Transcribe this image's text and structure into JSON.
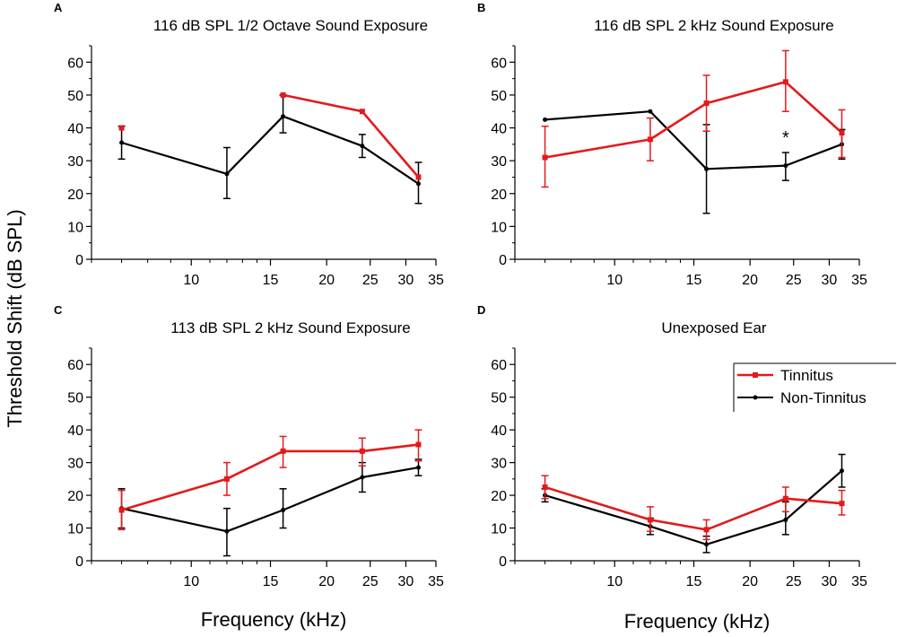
{
  "figure": {
    "ylabel": "Threshold Shift (dB SPL)",
    "xlabel": "Frequency (kHz)",
    "colors": {
      "tinnitus": "#e31a1c",
      "non_tinnitus": "#000000"
    },
    "legend": {
      "tinnitus": "Tinnitus",
      "non_tinnitus": "Non-Tinnitus"
    }
  },
  "chart_data": [
    {
      "panel": "A",
      "type": "line",
      "title": "116 dB SPL 1/2 Octave Sound Exposure",
      "xscale": "log",
      "xlim": [
        6,
        35
      ],
      "ylim": [
        0,
        65
      ],
      "xticks": [
        10,
        15,
        20,
        25,
        30,
        35
      ],
      "yticks": [
        0,
        10,
        20,
        30,
        40,
        50,
        60
      ],
      "series": [
        {
          "name": "Tinnitus",
          "color": "#e31a1c",
          "segments": [
            [
              [
                7,
                40
              ]
            ],
            [
              [
                16,
                50
              ],
              [
                24,
                45
              ],
              [
                32,
                25
              ]
            ]
          ],
          "errors": []
        },
        {
          "name": "Non-Tinnitus",
          "color": "#000000",
          "segments": [
            [
              [
                7,
                35.5
              ],
              [
                12,
                26
              ],
              [
                16,
                43.5
              ],
              [
                24,
                34.5
              ],
              [
                32,
                23
              ]
            ]
          ],
          "errors": [
            [
              7,
              30.5,
              40.5
            ],
            [
              12,
              18.5,
              34
            ],
            [
              16,
              38.5,
              50
            ],
            [
              24,
              31,
              38
            ],
            [
              32,
              17,
              29.5
            ]
          ]
        }
      ],
      "annotations": []
    },
    {
      "panel": "B",
      "type": "line",
      "title": "116 dB SPL 2 kHz Sound Exposure",
      "xscale": "log",
      "xlim": [
        6,
        35
      ],
      "ylim": [
        0,
        65
      ],
      "xticks": [
        10,
        15,
        20,
        25,
        30,
        35
      ],
      "yticks": [
        0,
        10,
        20,
        30,
        40,
        50,
        60
      ],
      "series": [
        {
          "name": "Tinnitus",
          "color": "#e31a1c",
          "segments": [
            [
              [
                7,
                31
              ],
              [
                12,
                36.5
              ],
              [
                16,
                47.5
              ],
              [
                24,
                54
              ],
              [
                32,
                38.5
              ]
            ]
          ],
          "errors": [
            [
              7,
              22,
              40.5
            ],
            [
              12,
              30,
              43
            ],
            [
              16,
              39,
              56
            ],
            [
              24,
              45,
              63.5
            ],
            [
              32,
              31,
              45.5
            ]
          ]
        },
        {
          "name": "Non-Tinnitus",
          "color": "#000000",
          "segments": [
            [
              [
                7,
                42.5
              ],
              [
                12,
                45
              ],
              [
                16,
                27.5
              ],
              [
                24,
                28.5
              ],
              [
                32,
                35
              ]
            ]
          ],
          "errors": [
            [
              16,
              14,
              41
            ],
            [
              24,
              24,
              32.5
            ],
            [
              32,
              30.5,
              39.5
            ]
          ]
        }
      ],
      "annotations": [
        {
          "text": "*",
          "x": 24,
          "y": 38.5
        }
      ]
    },
    {
      "panel": "C",
      "type": "line",
      "title": "113 dB SPL 2 kHz Sound Exposure",
      "xscale": "log",
      "xlim": [
        6,
        35
      ],
      "ylim": [
        0,
        65
      ],
      "xticks": [
        10,
        15,
        20,
        25,
        30,
        35
      ],
      "yticks": [
        0,
        10,
        20,
        30,
        40,
        50,
        60
      ],
      "series": [
        {
          "name": "Tinnitus",
          "color": "#e31a1c",
          "segments": [
            [
              [
                7,
                15.5
              ],
              [
                12,
                25
              ],
              [
                16,
                33.5
              ],
              [
                24,
                33.5
              ],
              [
                32,
                35.5
              ]
            ]
          ],
          "errors": [
            [
              7,
              9.5,
              21.5
            ],
            [
              12,
              20,
              30
            ],
            [
              16,
              28.5,
              38
            ],
            [
              24,
              29,
              37.5
            ],
            [
              32,
              30.5,
              40
            ]
          ]
        },
        {
          "name": "Non-Tinnitus",
          "color": "#000000",
          "segments": [
            [
              [
                7,
                16
              ],
              [
                12,
                9
              ],
              [
                16,
                15.5
              ],
              [
                24,
                25.5
              ],
              [
                32,
                28.5
              ]
            ]
          ],
          "errors": [
            [
              7,
              10,
              22
            ],
            [
              12,
              1.5,
              16
            ],
            [
              16,
              10,
              22
            ],
            [
              24,
              21,
              30
            ],
            [
              32,
              26,
              31
            ]
          ]
        }
      ],
      "annotations": []
    },
    {
      "panel": "D",
      "type": "line",
      "title": "Unexposed Ear",
      "xscale": "log",
      "xlim": [
        6,
        35
      ],
      "ylim": [
        0,
        65
      ],
      "xticks": [
        10,
        15,
        20,
        25,
        30,
        35
      ],
      "yticks": [
        0,
        10,
        20,
        30,
        40,
        50,
        60
      ],
      "series": [
        {
          "name": "Tinnitus",
          "color": "#e31a1c",
          "segments": [
            [
              [
                7,
                22.5
              ],
              [
                12,
                12.5
              ],
              [
                16,
                9.5
              ],
              [
                24,
                19
              ],
              [
                32,
                17.5
              ]
            ]
          ],
          "errors": [
            [
              7,
              19,
              26
            ],
            [
              12,
              9,
              16.5
            ],
            [
              16,
              6.5,
              12.5
            ],
            [
              24,
              15,
              22.5
            ],
            [
              32,
              14,
              21.5
            ]
          ]
        },
        {
          "name": "Non-Tinnitus",
          "color": "#000000",
          "segments": [
            [
              [
                7,
                20
              ],
              [
                12,
                10.5
              ],
              [
                16,
                5
              ],
              [
                24,
                12.5
              ],
              [
                32,
                27.5
              ]
            ]
          ],
          "errors": [
            [
              7,
              18,
              22
            ],
            [
              12,
              8,
              13
            ],
            [
              16,
              2.5,
              7.5
            ],
            [
              24,
              8,
              18
            ],
            [
              32,
              22.5,
              32.5
            ]
          ]
        }
      ],
      "annotations": []
    }
  ]
}
